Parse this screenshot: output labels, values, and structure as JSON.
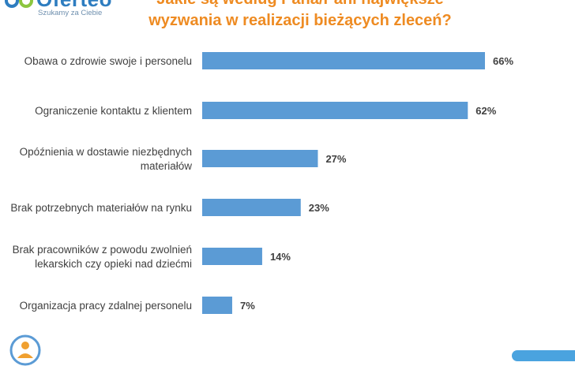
{
  "brand": {
    "name": "Oferteo",
    "tagline": "Szukamy za Ciebie"
  },
  "colors": {
    "bar": "#5b9bd5",
    "title": "#ee8b22",
    "brand": "#2e7dc0"
  },
  "chart_data": {
    "type": "bar",
    "orientation": "horizontal",
    "title_lines": [
      "Jakie są według Pana/Pani największe",
      "wyzwania w realizacji bieżących zleceń?"
    ],
    "categories": [
      [
        "Obawa o zdrowie swoje i personelu"
      ],
      [
        "Ograniczenie kontaktu z klientem"
      ],
      [
        "Opóźnienia w dostawie niezbędnych",
        "materiałów"
      ],
      [
        "Brak potrzebnych materiałów na rynku"
      ],
      [
        "Brak pracowników z powodu zwolnień",
        "lekarskich czy opieki nad dziećmi"
      ],
      [
        "Organizacja pracy zdalnej personelu"
      ]
    ],
    "values": [
      66,
      62,
      27,
      23,
      14,
      7
    ],
    "value_labels": [
      "66%",
      "62%",
      "27%",
      "23%",
      "14%",
      "7%"
    ],
    "xlim": [
      0,
      70
    ],
    "unit": "%",
    "grid": false,
    "legend": "none"
  },
  "icons": {
    "bottom_left": "person-badge-icon",
    "logo": "logo-mark-icon"
  }
}
